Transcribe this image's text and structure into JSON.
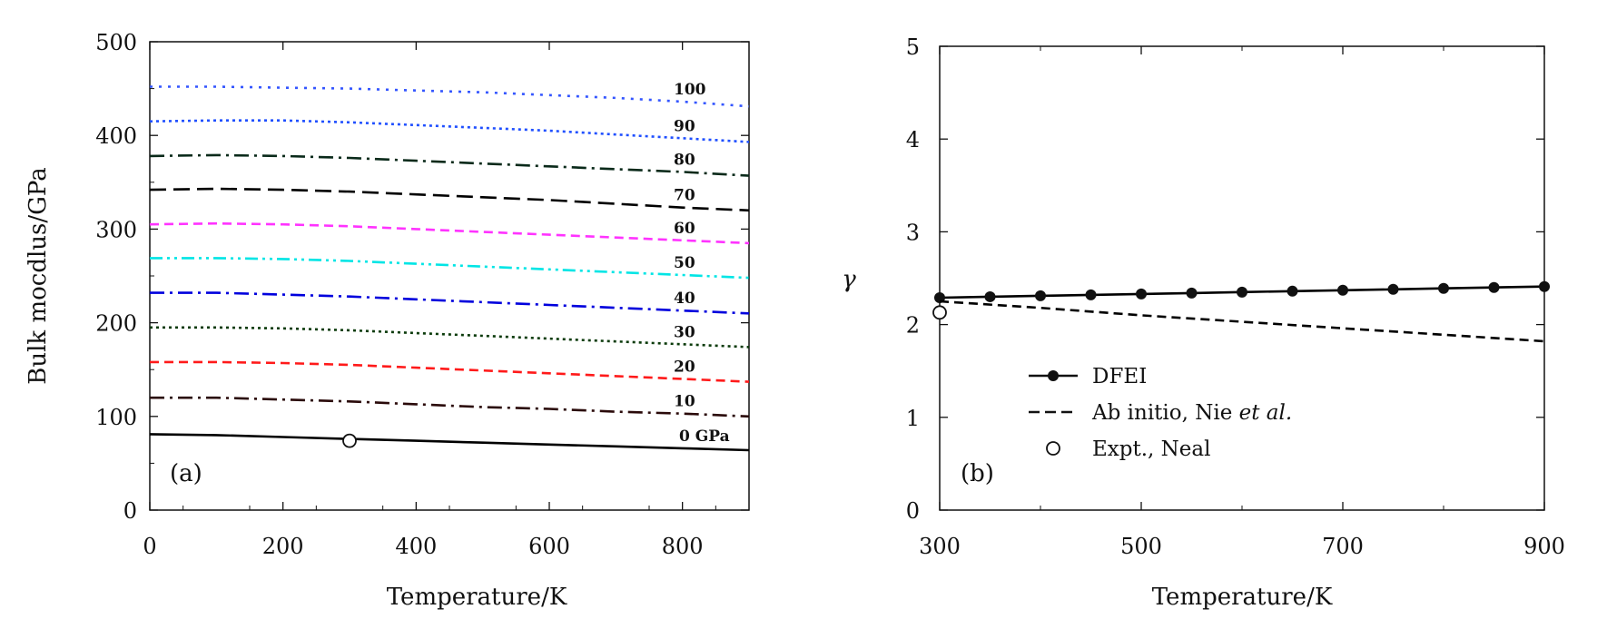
{
  "chart_data": [
    {
      "type": "line",
      "panel_label": "(a)",
      "xlabel": "Temperature/K",
      "ylabel": "Bulk mocdlus/GPa",
      "xlim": [
        0,
        900
      ],
      "ylim": [
        0,
        500
      ],
      "xticks": [
        0,
        200,
        400,
        600,
        800
      ],
      "xtick_labels": [
        "0",
        "200",
        "400",
        "600",
        "800"
      ],
      "yticks": [
        0,
        100,
        200,
        300,
        400,
        500
      ],
      "ytick_labels": [
        "0",
        "100",
        "200",
        "300",
        "400",
        "500"
      ],
      "series": [
        {
          "name": "0 GPa",
          "label": "0 GPa",
          "color": "#000000",
          "dash": "solid",
          "x": [
            0,
            100,
            200,
            300,
            400,
            500,
            600,
            700,
            800,
            900
          ],
          "y": [
            81,
            80,
            78,
            76,
            74,
            72,
            70,
            68,
            66,
            64
          ]
        },
        {
          "name": "10",
          "label": "10",
          "color": "#2a0a0a",
          "dash": "dashdot",
          "x": [
            0,
            100,
            200,
            300,
            400,
            500,
            600,
            700,
            800,
            900
          ],
          "y": [
            120,
            120,
            118,
            116,
            113,
            110,
            108,
            105,
            103,
            100
          ]
        },
        {
          "name": "20",
          "label": "20",
          "color": "#ff1a1a",
          "dash": "dash",
          "x": [
            0,
            100,
            200,
            300,
            400,
            500,
            600,
            700,
            800,
            900
          ],
          "y": [
            158,
            158,
            157,
            155,
            152,
            149,
            146,
            143,
            140,
            137
          ]
        },
        {
          "name": "30",
          "label": "30",
          "color": "#0a3a0a",
          "dash": "dot",
          "x": [
            0,
            100,
            200,
            300,
            400,
            500,
            600,
            700,
            800,
            900
          ],
          "y": [
            195,
            195,
            194,
            192,
            189,
            186,
            183,
            180,
            177,
            174
          ]
        },
        {
          "name": "40",
          "label": "40",
          "color": "#0000dd",
          "dash": "dashdot",
          "x": [
            0,
            100,
            200,
            300,
            400,
            500,
            600,
            700,
            800,
            900
          ],
          "y": [
            232,
            232,
            230,
            228,
            225,
            222,
            219,
            216,
            213,
            210
          ]
        },
        {
          "name": "50",
          "label": "50",
          "color": "#00e5e5",
          "dash": "dashdotdot",
          "x": [
            0,
            100,
            200,
            300,
            400,
            500,
            600,
            700,
            800,
            900
          ],
          "y": [
            269,
            269,
            268,
            266,
            263,
            260,
            257,
            254,
            251,
            248
          ]
        },
        {
          "name": "60",
          "label": "60",
          "color": "#ff33ff",
          "dash": "dash",
          "x": [
            0,
            100,
            200,
            300,
            400,
            500,
            600,
            700,
            800,
            900
          ],
          "y": [
            305,
            306,
            305,
            303,
            300,
            297,
            294,
            291,
            288,
            285
          ]
        },
        {
          "name": "70",
          "label": "70",
          "color": "#000000",
          "dash": "longdash",
          "x": [
            0,
            100,
            200,
            300,
            400,
            500,
            600,
            700,
            800,
            900
          ],
          "y": [
            342,
            343,
            342,
            340,
            337,
            334,
            331,
            327,
            323,
            320
          ]
        },
        {
          "name": "80",
          "label": "80",
          "color": "#0a2a1a",
          "dash": "dashdot",
          "x": [
            0,
            100,
            200,
            300,
            400,
            500,
            600,
            700,
            800,
            900
          ],
          "y": [
            378,
            379,
            378,
            376,
            373,
            370,
            367,
            364,
            361,
            357
          ]
        },
        {
          "name": "90",
          "label": "90",
          "color": "#1f4fff",
          "dash": "dot",
          "x": [
            0,
            100,
            200,
            300,
            400,
            500,
            600,
            700,
            800,
            900
          ],
          "y": [
            415,
            416,
            416,
            414,
            411,
            408,
            405,
            401,
            397,
            393
          ]
        },
        {
          "name": "100",
          "label": "100",
          "color": "#3355ff",
          "dash": "widedot",
          "x": [
            0,
            100,
            200,
            300,
            400,
            500,
            600,
            700,
            800,
            900
          ],
          "y": [
            452,
            452,
            451,
            450,
            448,
            446,
            443,
            440,
            436,
            431
          ]
        }
      ],
      "markers": [
        {
          "name": "Expt.",
          "x": 300,
          "y": 74
        }
      ]
    },
    {
      "type": "line",
      "panel_label": "(b)",
      "xlabel": "Temperature/K",
      "ylabel": "γ",
      "xlim": [
        300,
        900
      ],
      "ylim": [
        0,
        5
      ],
      "xticks": [
        300,
        500,
        700,
        900
      ],
      "xtick_labels": [
        "300",
        "500",
        "700",
        "900"
      ],
      "yticks": [
        0,
        1,
        2,
        3,
        4,
        5
      ],
      "ytick_labels": [
        "0",
        "1",
        "2",
        "3",
        "4",
        "5"
      ],
      "series": [
        {
          "name": "DFEI",
          "color": "#000000",
          "dash": "solid",
          "markers": true,
          "x": [
            300,
            350,
            400,
            450,
            500,
            550,
            600,
            650,
            700,
            750,
            800,
            850,
            900
          ],
          "y": [
            2.29,
            2.3,
            2.31,
            2.32,
            2.33,
            2.34,
            2.35,
            2.36,
            2.37,
            2.38,
            2.39,
            2.4,
            2.41
          ]
        },
        {
          "name": "Ab initio, Nie et al.",
          "color": "#000000",
          "dash": "dash",
          "markers": false,
          "x": [
            300,
            400,
            500,
            600,
            700,
            800,
            900
          ],
          "y": [
            2.25,
            2.18,
            2.1,
            2.03,
            1.96,
            1.89,
            1.82
          ]
        }
      ],
      "points": [
        {
          "name": "Expt., Neal",
          "x": 300,
          "y": 2.13
        }
      ],
      "legend": {
        "placement": "bottom-left",
        "entries": [
          {
            "text": "DFEI",
            "style": "line-marker"
          },
          {
            "text_main": "Ab initio, Nie ",
            "text_italic": "et al.",
            "style": "dash"
          },
          {
            "text": "Expt., Neal",
            "style": "open-circle"
          }
        ]
      }
    }
  ]
}
